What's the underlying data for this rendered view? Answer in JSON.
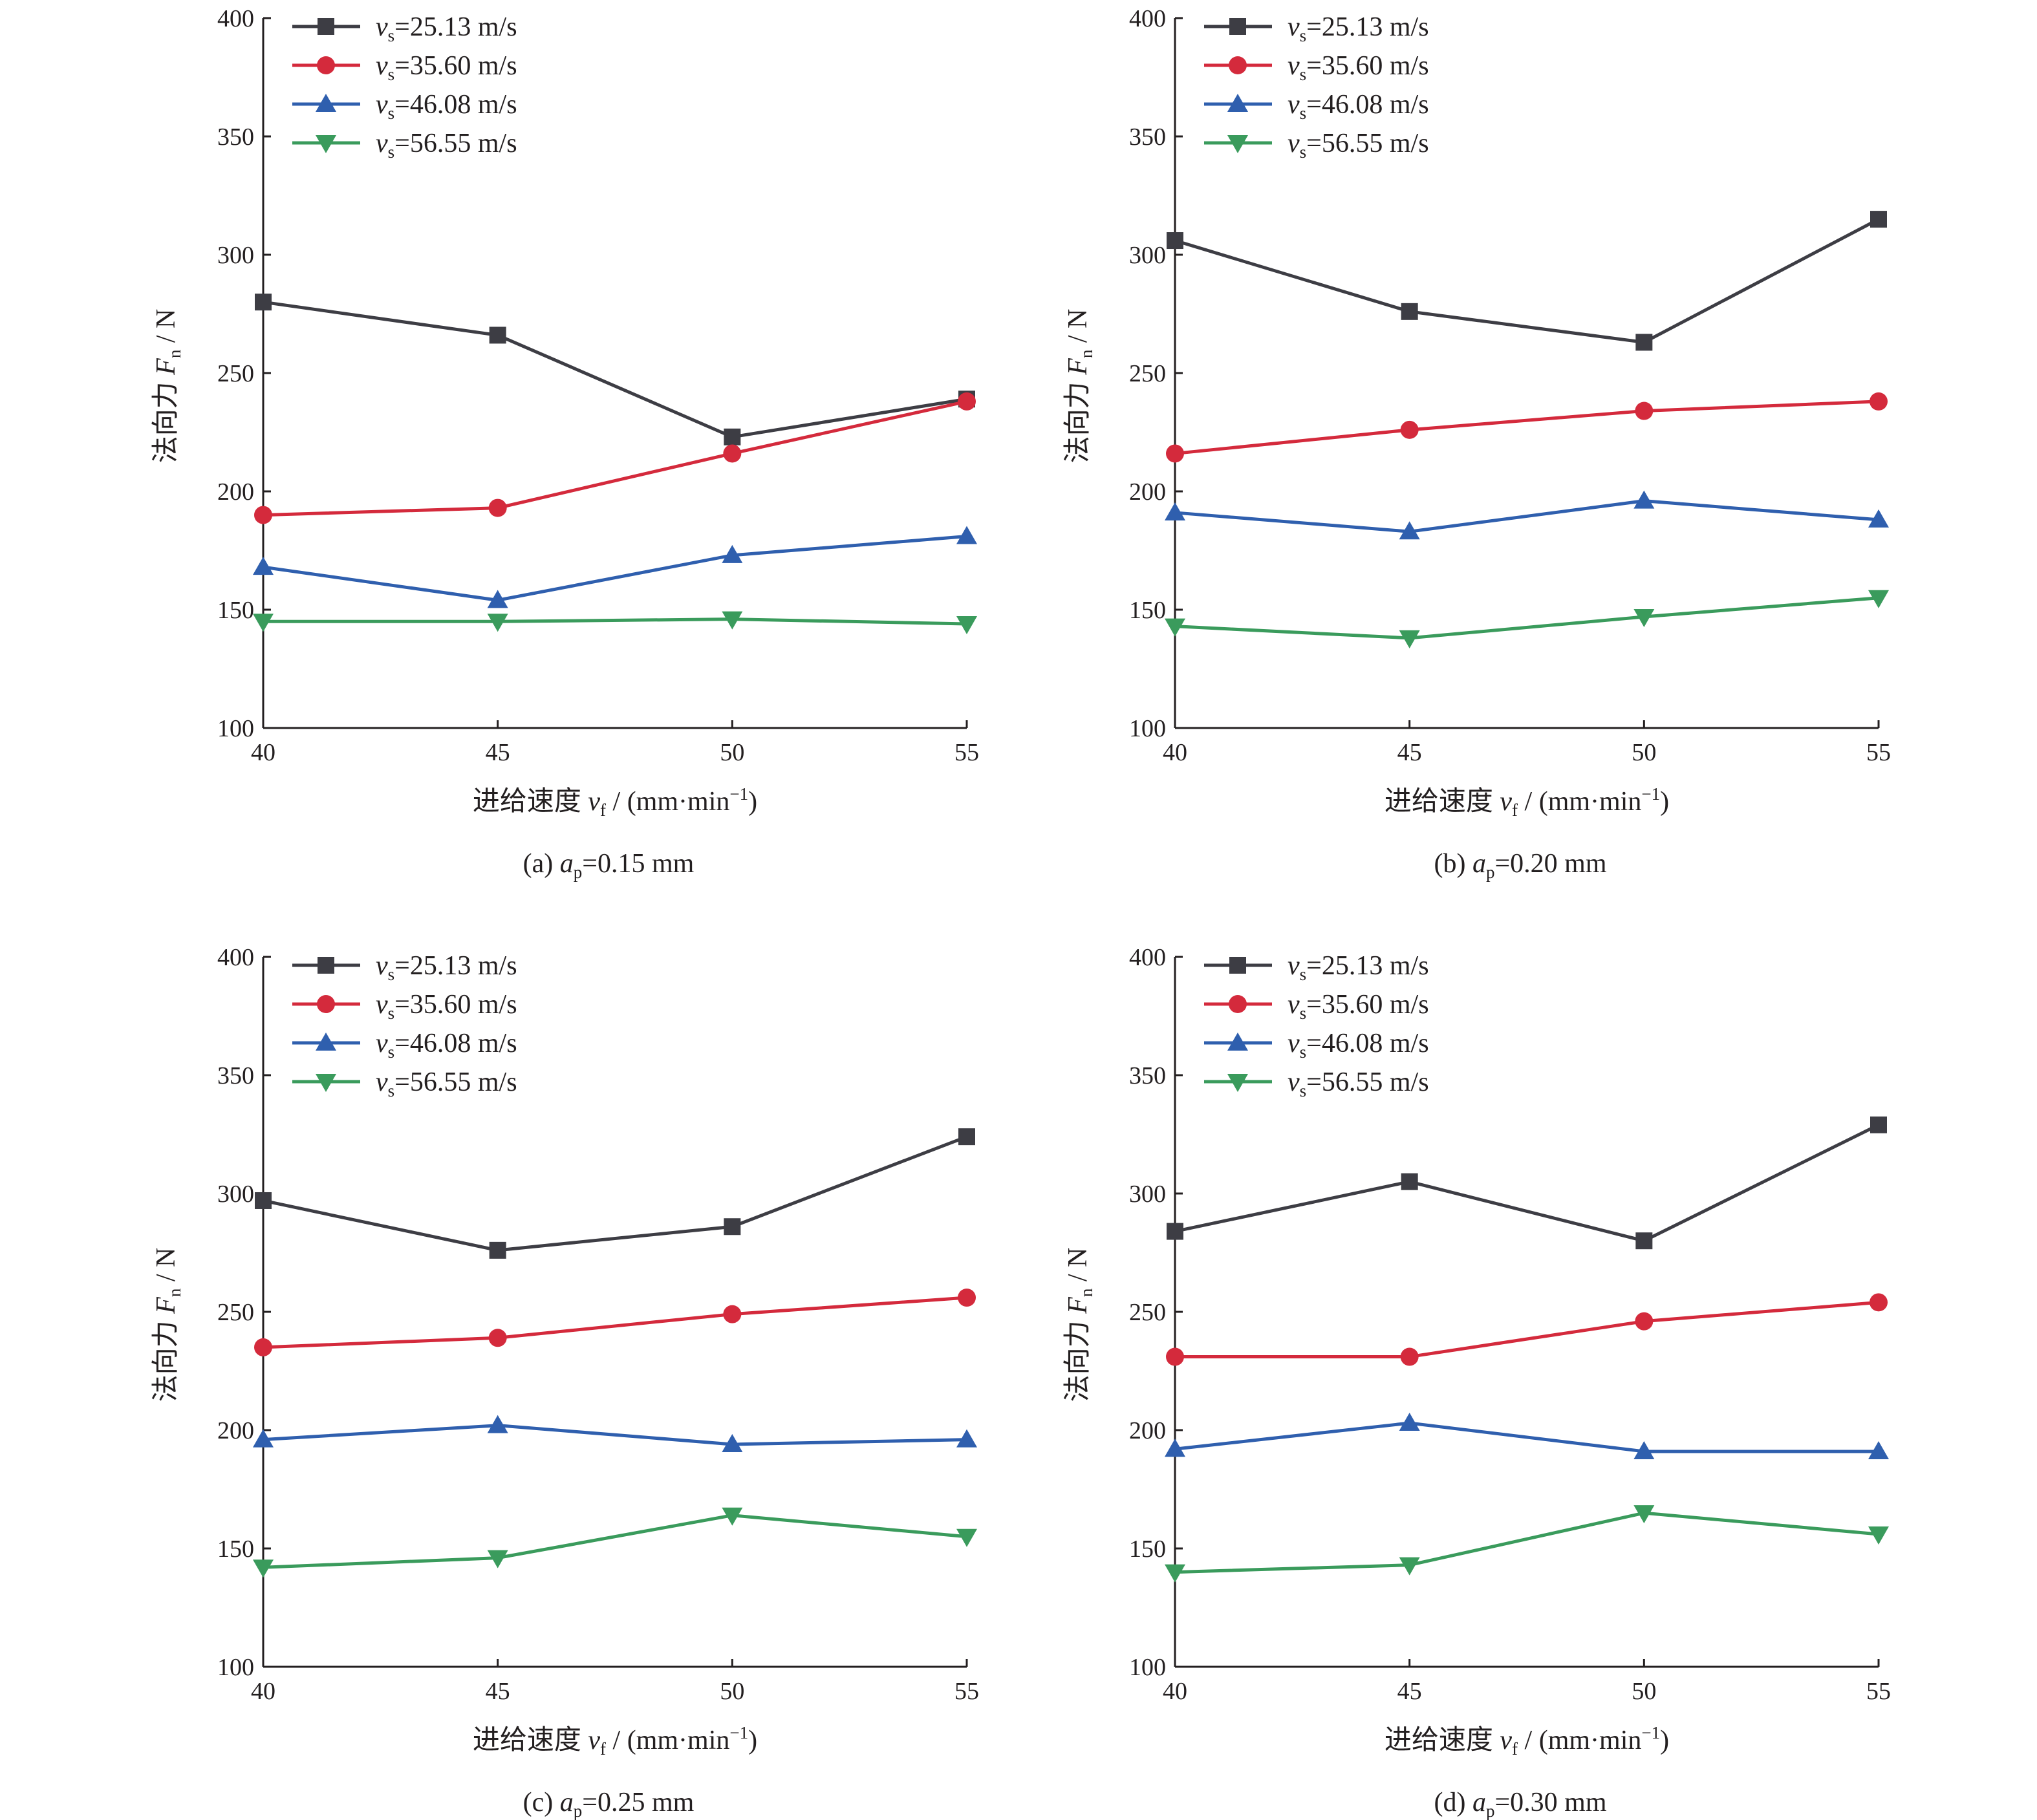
{
  "colors": {
    "series": [
      "#3d3d44",
      "#d42a3c",
      "#2f5fae",
      "#3a9b5c"
    ],
    "axis": "#231f20"
  },
  "chart_data": [
    {
      "type": "line",
      "caption": {
        "prefix": "(a) ",
        "var": "a",
        "sub": "p",
        "rest": "=0.15 mm"
      },
      "xlabel": {
        "cn": "进给速度 ",
        "var": "v",
        "sub": "f",
        "rest": " / (mm·min",
        "sup": "−1",
        "close": ")"
      },
      "ylabel": {
        "cn": "法向力 ",
        "var": "F",
        "sub": "n",
        "rest": " / N"
      },
      "x": [
        40,
        45,
        50,
        55
      ],
      "xticks": [
        "40",
        "45",
        "50",
        "55"
      ],
      "ylim": [
        100,
        400
      ],
      "yticks": [
        "100",
        "150",
        "200",
        "250",
        "300",
        "350",
        "400"
      ],
      "legend_position": "top-left",
      "series": [
        {
          "name": {
            "var": "v",
            "sub": "s",
            "rest": "=25.13 m/s"
          },
          "marker": "square",
          "values": [
            280,
            266,
            223,
            239
          ]
        },
        {
          "name": {
            "var": "v",
            "sub": "s",
            "rest": "=35.60 m/s"
          },
          "marker": "circle",
          "values": [
            190,
            193,
            216,
            238
          ]
        },
        {
          "name": {
            "var": "v",
            "sub": "s",
            "rest": "=46.08 m/s"
          },
          "marker": "triangle-up",
          "values": [
            168,
            154,
            173,
            181
          ]
        },
        {
          "name": {
            "var": "v",
            "sub": "s",
            "rest": "=56.55 m/s"
          },
          "marker": "triangle-down",
          "values": [
            145,
            145,
            146,
            144
          ]
        }
      ]
    },
    {
      "type": "line",
      "caption": {
        "prefix": "(b) ",
        "var": "a",
        "sub": "p",
        "rest": "=0.20 mm"
      },
      "xlabel": {
        "cn": "进给速度 ",
        "var": "v",
        "sub": "f",
        "rest": " / (mm·min",
        "sup": "−1",
        "close": ")"
      },
      "ylabel": {
        "cn": "法向力 ",
        "var": "F",
        "sub": "n",
        "rest": " / N"
      },
      "x": [
        40,
        45,
        50,
        55
      ],
      "xticks": [
        "40",
        "45",
        "50",
        "55"
      ],
      "ylim": [
        100,
        400
      ],
      "yticks": [
        "100",
        "150",
        "200",
        "250",
        "300",
        "350",
        "400"
      ],
      "legend_position": "top-left",
      "series": [
        {
          "name": {
            "var": "v",
            "sub": "s",
            "rest": "=25.13 m/s"
          },
          "marker": "square",
          "values": [
            306,
            276,
            263,
            315
          ]
        },
        {
          "name": {
            "var": "v",
            "sub": "s",
            "rest": "=35.60 m/s"
          },
          "marker": "circle",
          "values": [
            216,
            226,
            234,
            238
          ]
        },
        {
          "name": {
            "var": "v",
            "sub": "s",
            "rest": "=46.08 m/s"
          },
          "marker": "triangle-up",
          "values": [
            191,
            183,
            196,
            188
          ]
        },
        {
          "name": {
            "var": "v",
            "sub": "s",
            "rest": "=56.55 m/s"
          },
          "marker": "triangle-down",
          "values": [
            143,
            138,
            147,
            155
          ]
        }
      ]
    },
    {
      "type": "line",
      "caption": {
        "prefix": "(c) ",
        "var": "a",
        "sub": "p",
        "rest": "=0.25 mm"
      },
      "xlabel": {
        "cn": "进给速度 ",
        "var": "v",
        "sub": "f",
        "rest": " / (mm·min",
        "sup": "−1",
        "close": ")"
      },
      "ylabel": {
        "cn": "法向力 ",
        "var": "F",
        "sub": "n",
        "rest": " / N"
      },
      "x": [
        40,
        45,
        50,
        55
      ],
      "xticks": [
        "40",
        "45",
        "50",
        "55"
      ],
      "ylim": [
        100,
        400
      ],
      "yticks": [
        "100",
        "150",
        "200",
        "250",
        "300",
        "350",
        "400"
      ],
      "legend_position": "top-left",
      "series": [
        {
          "name": {
            "var": "v",
            "sub": "s",
            "rest": "=25.13 m/s"
          },
          "marker": "square",
          "values": [
            297,
            276,
            286,
            324
          ]
        },
        {
          "name": {
            "var": "v",
            "sub": "s",
            "rest": "=35.60 m/s"
          },
          "marker": "circle",
          "values": [
            235,
            239,
            249,
            256
          ]
        },
        {
          "name": {
            "var": "v",
            "sub": "s",
            "rest": "=46.08 m/s"
          },
          "marker": "triangle-up",
          "values": [
            196,
            202,
            194,
            196
          ]
        },
        {
          "name": {
            "var": "v",
            "sub": "s",
            "rest": "=56.55 m/s"
          },
          "marker": "triangle-down",
          "values": [
            142,
            146,
            164,
            155
          ]
        }
      ]
    },
    {
      "type": "line",
      "caption": {
        "prefix": "(d) ",
        "var": "a",
        "sub": "p",
        "rest": "=0.30 mm"
      },
      "xlabel": {
        "cn": "进给速度 ",
        "var": "v",
        "sub": "f",
        "rest": " / (mm·min",
        "sup": "−1",
        "close": ")"
      },
      "ylabel": {
        "cn": "法向力 ",
        "var": "F",
        "sub": "n",
        "rest": " / N"
      },
      "x": [
        40,
        45,
        50,
        55
      ],
      "xticks": [
        "40",
        "45",
        "50",
        "55"
      ],
      "ylim": [
        100,
        400
      ],
      "yticks": [
        "100",
        "150",
        "200",
        "250",
        "300",
        "350",
        "400"
      ],
      "legend_position": "top-left",
      "series": [
        {
          "name": {
            "var": "v",
            "sub": "s",
            "rest": "=25.13 m/s"
          },
          "marker": "square",
          "values": [
            284,
            305,
            280,
            329
          ]
        },
        {
          "name": {
            "var": "v",
            "sub": "s",
            "rest": "=35.60 m/s"
          },
          "marker": "circle",
          "values": [
            231,
            231,
            246,
            254
          ]
        },
        {
          "name": {
            "var": "v",
            "sub": "s",
            "rest": "=46.08 m/s"
          },
          "marker": "triangle-up",
          "values": [
            192,
            203,
            191,
            191
          ]
        },
        {
          "name": {
            "var": "v",
            "sub": "s",
            "rest": "=56.55 m/s"
          },
          "marker": "triangle-down",
          "values": [
            140,
            143,
            165,
            156
          ]
        }
      ]
    }
  ]
}
